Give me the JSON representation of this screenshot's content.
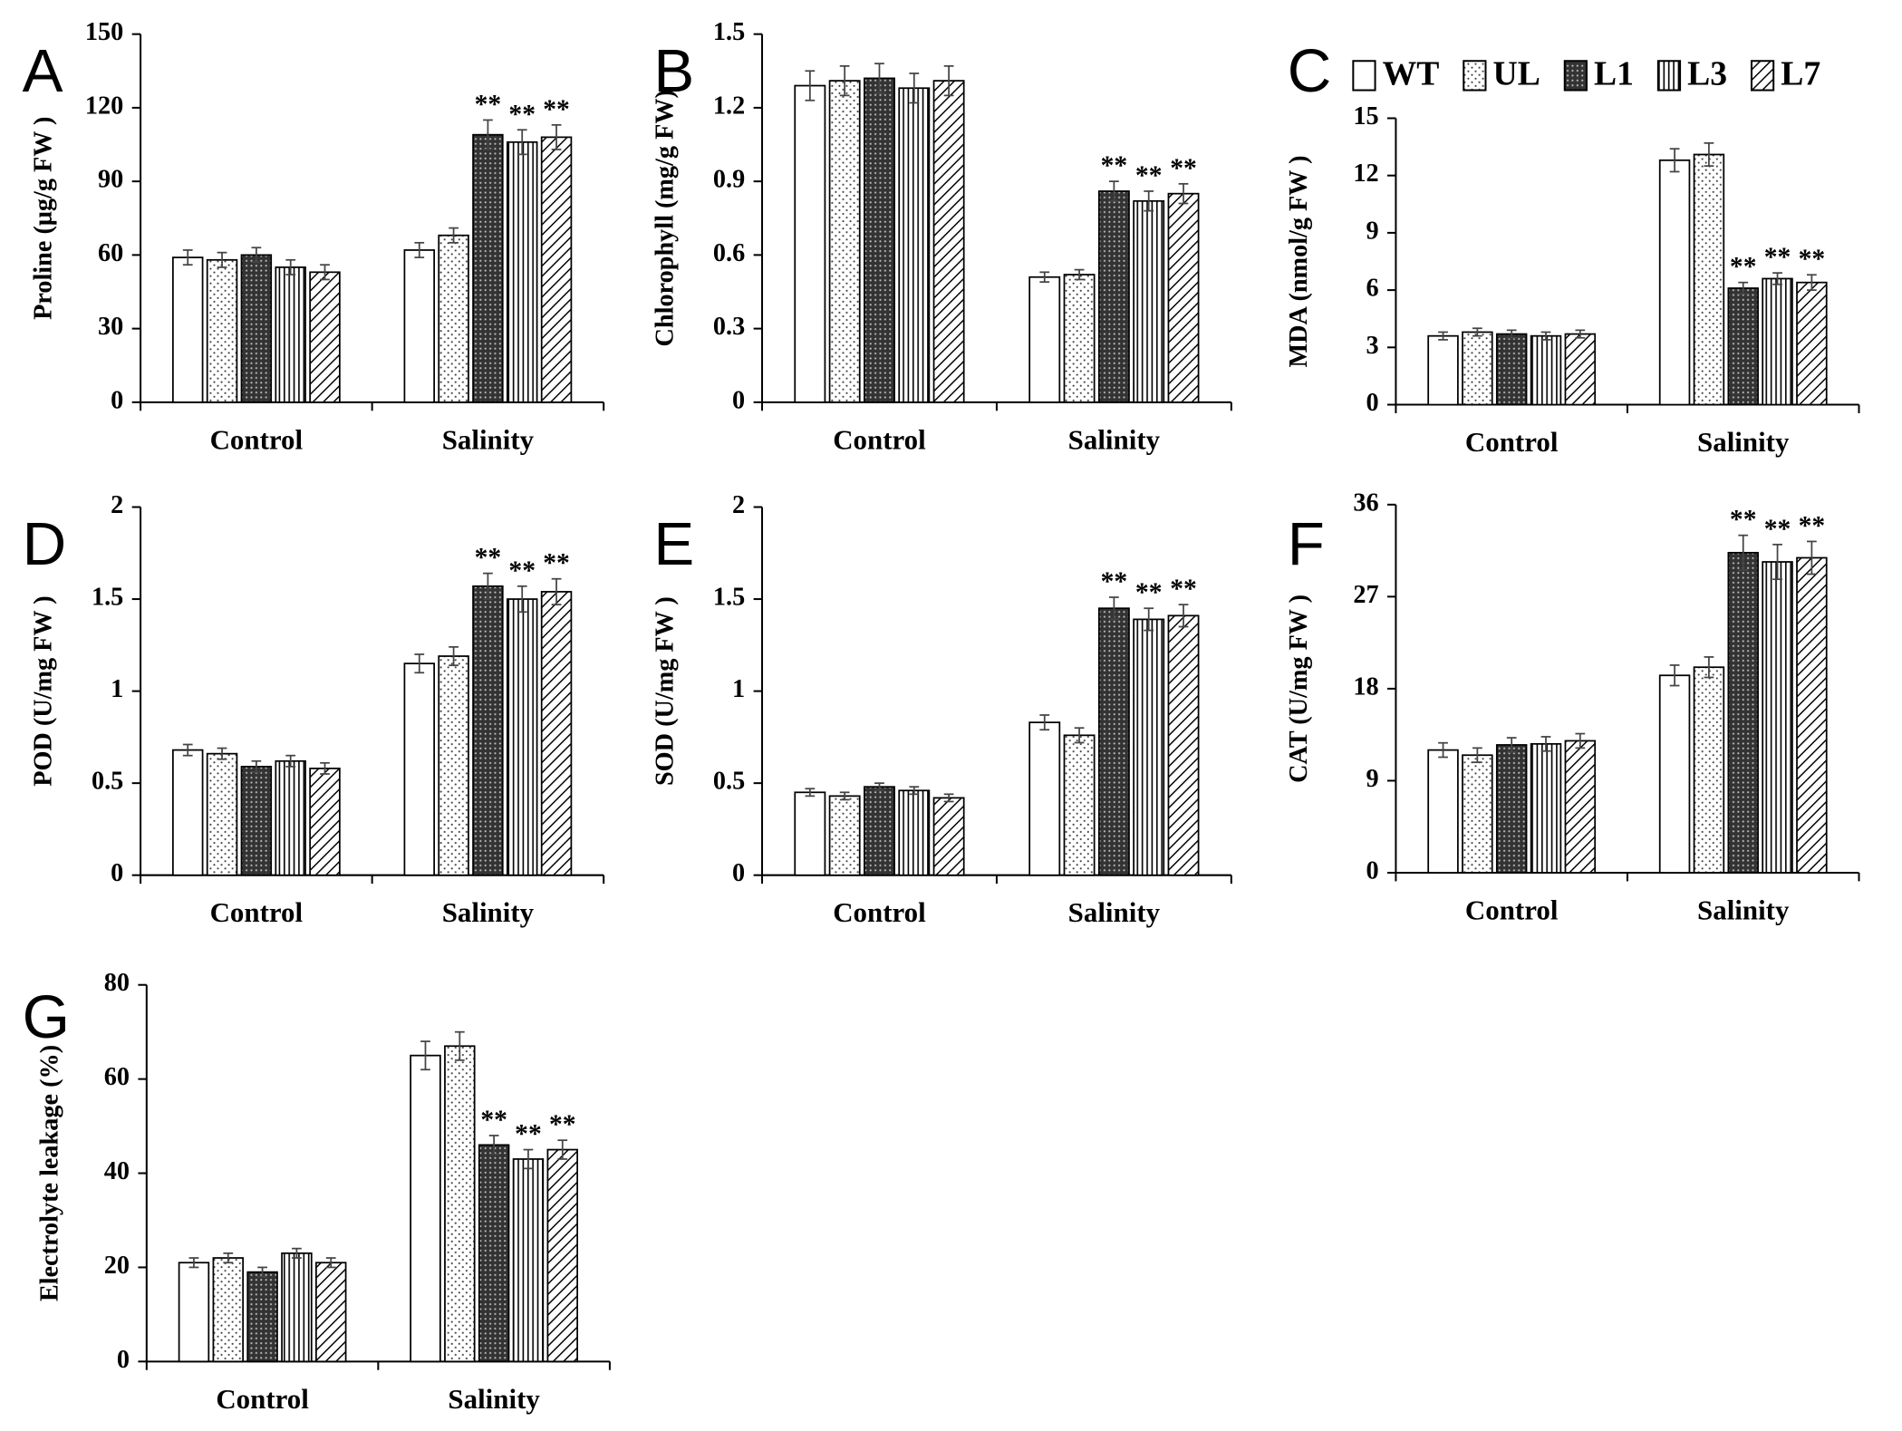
{
  "chart_data": [
    {
      "type": "bar",
      "panel": "A",
      "y_label": "Proline (μg/g FW )",
      "categories": [
        "Control",
        "Salinity"
      ],
      "ylim": [
        0,
        150
      ],
      "yticks": [
        0,
        30,
        60,
        90,
        120,
        150
      ],
      "series": [
        {
          "color": "#000000",
          "pattern": "none",
          "values": [
            59,
            62
          ],
          "errors": [
            3,
            3
          ],
          "annotations": [
            null,
            null
          ]
        },
        {
          "color": "#000000",
          "pattern": "dots",
          "values": [
            58,
            68
          ],
          "errors": [
            3,
            3
          ],
          "annotations": [
            null,
            null
          ]
        },
        {
          "color": "#000000",
          "pattern": "dense",
          "values": [
            60,
            109
          ],
          "errors": [
            3,
            6
          ],
          "annotations": [
            null,
            "**"
          ]
        },
        {
          "color": "#000000",
          "pattern": "vertical",
          "values": [
            55,
            106
          ],
          "errors": [
            3,
            5
          ],
          "annotations": [
            null,
            "**"
          ]
        },
        {
          "color": "#000000",
          "pattern": "diagonal",
          "values": [
            53,
            108
          ],
          "errors": [
            3,
            5
          ],
          "annotations": [
            null,
            "**"
          ]
        }
      ]
    },
    {
      "type": "bar",
      "panel": "B",
      "y_label": "Chlorophyll (mg/g FW)",
      "categories": [
        "Control",
        "Salinity"
      ],
      "ylim": [
        0,
        1.5
      ],
      "yticks": [
        0,
        0.3,
        0.6,
        0.9,
        1.2,
        1.5
      ],
      "series": [
        {
          "color": "#000000",
          "pattern": "none",
          "values": [
            1.29,
            0.51
          ],
          "errors": [
            0.06,
            0.02
          ],
          "annotations": [
            null,
            null
          ]
        },
        {
          "color": "#000000",
          "pattern": "dots",
          "values": [
            1.31,
            0.52
          ],
          "errors": [
            0.06,
            0.02
          ],
          "annotations": [
            null,
            null
          ]
        },
        {
          "color": "#000000",
          "pattern": "dense",
          "values": [
            1.32,
            0.86
          ],
          "errors": [
            0.06,
            0.04
          ],
          "annotations": [
            null,
            "**"
          ]
        },
        {
          "color": "#000000",
          "pattern": "vertical",
          "values": [
            1.28,
            0.82
          ],
          "errors": [
            0.06,
            0.04
          ],
          "annotations": [
            null,
            "**"
          ]
        },
        {
          "color": "#000000",
          "pattern": "diagonal",
          "values": [
            1.31,
            0.85
          ],
          "errors": [
            0.06,
            0.04
          ],
          "annotations": [
            null,
            "**"
          ]
        }
      ]
    },
    {
      "type": "bar",
      "panel": "C",
      "y_label": "MDA (nmol/g FW )",
      "categories": [
        "Control",
        "Salinity"
      ],
      "ylim": [
        0,
        15
      ],
      "yticks": [
        0,
        3,
        6,
        9,
        12,
        15
      ],
      "legend": true,
      "series": [
        {
          "name": "WT",
          "color": "#000000",
          "pattern": "none",
          "values": [
            3.6,
            12.8
          ],
          "errors": [
            0.2,
            0.6
          ],
          "annotations": [
            null,
            null
          ]
        },
        {
          "name": "UL",
          "color": "#000000",
          "pattern": "dots",
          "values": [
            3.8,
            13.1
          ],
          "errors": [
            0.2,
            0.6
          ],
          "annotations": [
            null,
            null
          ]
        },
        {
          "name": "L1",
          "color": "#000000",
          "pattern": "dense",
          "values": [
            3.7,
            6.1
          ],
          "errors": [
            0.2,
            0.3
          ],
          "annotations": [
            null,
            "**"
          ]
        },
        {
          "name": "L3",
          "color": "#000000",
          "pattern": "vertical",
          "values": [
            3.6,
            6.6
          ],
          "errors": [
            0.2,
            0.3
          ],
          "annotations": [
            null,
            "**"
          ]
        },
        {
          "name": "L7",
          "color": "#000000",
          "pattern": "diagonal",
          "values": [
            3.7,
            6.4
          ],
          "errors": [
            0.2,
            0.4
          ],
          "annotations": [
            null,
            "**"
          ]
        }
      ]
    },
    {
      "type": "bar",
      "panel": "D",
      "y_label": "POD (U/mg FW )",
      "categories": [
        "Control",
        "Salinity"
      ],
      "ylim": [
        0,
        2
      ],
      "yticks": [
        0,
        0.5,
        1,
        1.5,
        2
      ],
      "series": [
        {
          "color": "#000000",
          "pattern": "none",
          "values": [
            0.68,
            1.15
          ],
          "errors": [
            0.03,
            0.05
          ],
          "annotations": [
            null,
            null
          ]
        },
        {
          "color": "#000000",
          "pattern": "dots",
          "values": [
            0.66,
            1.19
          ],
          "errors": [
            0.03,
            0.05
          ],
          "annotations": [
            null,
            null
          ]
        },
        {
          "color": "#000000",
          "pattern": "dense",
          "values": [
            0.59,
            1.57
          ],
          "errors": [
            0.03,
            0.07
          ],
          "annotations": [
            null,
            "**"
          ]
        },
        {
          "color": "#000000",
          "pattern": "vertical",
          "values": [
            0.62,
            1.5
          ],
          "errors": [
            0.03,
            0.07
          ],
          "annotations": [
            null,
            "**"
          ]
        },
        {
          "color": "#000000",
          "pattern": "diagonal",
          "values": [
            0.58,
            1.54
          ],
          "errors": [
            0.03,
            0.07
          ],
          "annotations": [
            null,
            "**"
          ]
        }
      ]
    },
    {
      "type": "bar",
      "panel": "E",
      "y_label": "SOD (U/mg FW )",
      "categories": [
        "Control",
        "Salinity"
      ],
      "ylim": [
        0,
        2
      ],
      "yticks": [
        0,
        0.5,
        1,
        1.5,
        2
      ],
      "series": [
        {
          "color": "#000000",
          "pattern": "none",
          "values": [
            0.45,
            0.83
          ],
          "errors": [
            0.02,
            0.04
          ],
          "annotations": [
            null,
            null
          ]
        },
        {
          "color": "#000000",
          "pattern": "dots",
          "values": [
            0.43,
            0.76
          ],
          "errors": [
            0.02,
            0.04
          ],
          "annotations": [
            null,
            null
          ]
        },
        {
          "color": "#000000",
          "pattern": "dense",
          "values": [
            0.48,
            1.45
          ],
          "errors": [
            0.02,
            0.06
          ],
          "annotations": [
            null,
            "**"
          ]
        },
        {
          "color": "#000000",
          "pattern": "vertical",
          "values": [
            0.46,
            1.39
          ],
          "errors": [
            0.02,
            0.06
          ],
          "annotations": [
            null,
            "**"
          ]
        },
        {
          "color": "#000000",
          "pattern": "diagonal",
          "values": [
            0.42,
            1.41
          ],
          "errors": [
            0.02,
            0.06
          ],
          "annotations": [
            null,
            "**"
          ]
        }
      ]
    },
    {
      "type": "bar",
      "panel": "F",
      "y_label": "CAT (U/mg FW )",
      "categories": [
        "Control",
        "Salinity"
      ],
      "ylim": [
        0,
        36
      ],
      "yticks": [
        0,
        9,
        18,
        27,
        36
      ],
      "series": [
        {
          "color": "#000000",
          "pattern": "none",
          "values": [
            12,
            19.3
          ],
          "errors": [
            0.7,
            1
          ],
          "annotations": [
            null,
            null
          ]
        },
        {
          "color": "#000000",
          "pattern": "dots",
          "values": [
            11.5,
            20.1
          ],
          "errors": [
            0.7,
            1
          ],
          "annotations": [
            null,
            null
          ]
        },
        {
          "color": "#000000",
          "pattern": "dense",
          "values": [
            12.5,
            31.3
          ],
          "errors": [
            0.7,
            1.7
          ],
          "annotations": [
            null,
            "**"
          ]
        },
        {
          "color": "#000000",
          "pattern": "vertical",
          "values": [
            12.6,
            30.4
          ],
          "errors": [
            0.7,
            1.7
          ],
          "annotations": [
            null,
            "**"
          ]
        },
        {
          "color": "#000000",
          "pattern": "diagonal",
          "values": [
            12.9,
            30.8
          ],
          "errors": [
            0.7,
            1.6
          ],
          "annotations": [
            null,
            "**"
          ]
        }
      ]
    },
    {
      "type": "bar",
      "panel": "G",
      "y_label": "Electrolyte leakage (%)",
      "categories": [
        "Control",
        "Salinity"
      ],
      "ylim": [
        0,
        80
      ],
      "yticks": [
        0,
        20,
        40,
        60,
        80
      ],
      "series": [
        {
          "color": "#000000",
          "pattern": "none",
          "values": [
            21,
            65
          ],
          "errors": [
            1,
            3
          ],
          "annotations": [
            null,
            null
          ]
        },
        {
          "color": "#000000",
          "pattern": "dots",
          "values": [
            22,
            67
          ],
          "errors": [
            1,
            3
          ],
          "annotations": [
            null,
            null
          ]
        },
        {
          "color": "#000000",
          "pattern": "dense",
          "values": [
            19,
            46
          ],
          "errors": [
            1,
            2
          ],
          "annotations": [
            null,
            "**"
          ]
        },
        {
          "color": "#000000",
          "pattern": "vertical",
          "values": [
            23,
            43
          ],
          "errors": [
            1,
            2
          ],
          "annotations": [
            null,
            "**"
          ]
        },
        {
          "color": "#000000",
          "pattern": "diagonal",
          "values": [
            21,
            45
          ],
          "errors": [
            1,
            2
          ],
          "annotations": [
            null,
            "**"
          ]
        }
      ]
    }
  ]
}
